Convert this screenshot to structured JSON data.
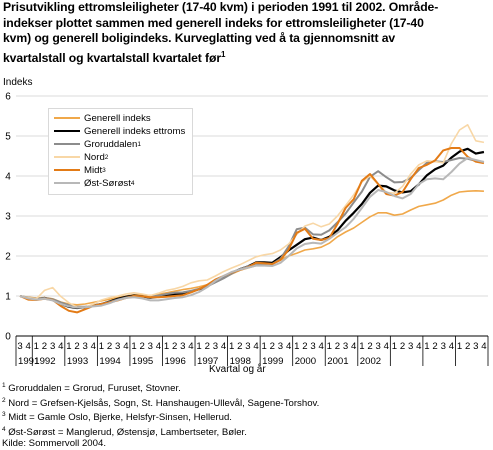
{
  "title_lines": [
    "Prisutvikling ettromsleiligheter (17-40 kvm) i perioden 1991 til 2002. Område-",
    "indekser plottet sammen med generell indeks for ettromsleiligheter (17-40",
    "kvm) og generell boligindeks. Kurveglatting ved å ta gjennomsnitt av",
    "kvartalstall og kvartalstall kvartalet før"
  ],
  "title_footnote_mark": "1",
  "ylabel": "Indeks",
  "xlabel": "Kvartal og år",
  "footnotes": [
    {
      "mark": "1",
      "text": "Groruddalen = Grorud, Furuset, Stovner."
    },
    {
      "mark": "2",
      "text": "Nord = Grefsen-Kjelsås, Sogn, St. Hanshaugen-Ullevål, Sagene-Torshov."
    },
    {
      "mark": "3",
      "text": "Midt = Gamle Oslo, Bjerke, Helsfyr-Sinsen, Hellerud."
    },
    {
      "mark": "4",
      "text": "Øst-Sørøst = Manglerud, Østensjø, Lambertseter, Bøler."
    },
    {
      "mark": "",
      "text": "Kilde: Sommervoll 2004."
    }
  ],
  "chart_data": {
    "type": "line",
    "ylim": [
      0,
      6
    ],
    "yticks": [
      0,
      1,
      2,
      3,
      4,
      5,
      6
    ],
    "grid": "horizontal",
    "legend_position": "top-left",
    "x_tick_labels": [
      "3",
      "4",
      "1",
      "2",
      "3",
      "4",
      "1",
      "2",
      "3",
      "4",
      "1",
      "2",
      "3",
      "4",
      "1",
      "2",
      "3",
      "4",
      "1",
      "2",
      "3",
      "4",
      "1",
      "2",
      "3",
      "4",
      "1",
      "2",
      "3",
      "4",
      "1",
      "2",
      "3",
      "4",
      "1",
      "2",
      "3",
      "4",
      "1",
      "2",
      "3",
      "4",
      "1",
      "2",
      "3",
      "4",
      "1",
      "2",
      "3",
      "4",
      "1",
      "2",
      "3",
      "4",
      "1",
      "2",
      "3",
      "4"
    ],
    "x_year_labels": [
      "1991",
      "1992",
      "1993",
      "1994",
      "1995",
      "1996",
      "1997",
      "1998",
      "1999",
      "2000",
      "2001",
      "2002"
    ],
    "series": [
      {
        "name": "Generell indeks",
        "mark": "",
        "color": "#f0a84a",
        "width": 1.6,
        "values": [
          1.0,
          0.97,
          0.95,
          0.96,
          0.93,
          0.85,
          0.8,
          0.78,
          0.8,
          0.84,
          0.88,
          0.92,
          0.96,
          1.0,
          1.03,
          1.02,
          1.01,
          1.04,
          1.08,
          1.12,
          1.16,
          1.19,
          1.23,
          1.28,
          1.36,
          1.45,
          1.55,
          1.64,
          1.7,
          1.76,
          1.79,
          1.82,
          1.9,
          2.0,
          2.07,
          2.15,
          2.18,
          2.22,
          2.32,
          2.48,
          2.6,
          2.7,
          2.84,
          2.98,
          3.08,
          3.08,
          3.02,
          3.05,
          3.15,
          3.24,
          3.28,
          3.32,
          3.4,
          3.52,
          3.6,
          3.62,
          3.63,
          3.62
        ]
      },
      {
        "name": "Generell indeks ettroms",
        "mark": "",
        "color": "#000000",
        "width": 2.2,
        "values": [
          1.0,
          0.94,
          0.92,
          0.95,
          0.9,
          0.8,
          0.73,
          0.7,
          0.72,
          0.76,
          0.8,
          0.86,
          0.93,
          0.98,
          1.01,
          0.99,
          0.96,
          0.98,
          1.02,
          1.04,
          1.06,
          1.11,
          1.17,
          1.24,
          1.36,
          1.47,
          1.58,
          1.67,
          1.74,
          1.84,
          1.84,
          1.83,
          1.97,
          2.14,
          2.28,
          2.42,
          2.46,
          2.4,
          2.48,
          2.64,
          2.88,
          3.08,
          3.3,
          3.58,
          3.76,
          3.74,
          3.64,
          3.59,
          3.62,
          3.79,
          4.02,
          4.17,
          4.26,
          4.46,
          4.61,
          4.68,
          4.56,
          4.6
        ]
      },
      {
        "name": "Groruddalen",
        "mark": "1",
        "color": "#8c8c8c",
        "width": 2.0,
        "values": [
          1.0,
          0.96,
          0.93,
          0.95,
          0.92,
          0.84,
          0.77,
          0.73,
          0.73,
          0.76,
          0.8,
          0.85,
          0.91,
          0.96,
          1.0,
          0.99,
          0.98,
          1.01,
          1.05,
          1.08,
          1.09,
          1.13,
          1.18,
          1.24,
          1.34,
          1.44,
          1.56,
          1.67,
          1.74,
          1.81,
          1.81,
          1.8,
          1.93,
          2.24,
          2.67,
          2.71,
          2.54,
          2.53,
          2.64,
          2.84,
          3.06,
          3.34,
          3.61,
          3.98,
          4.12,
          3.97,
          3.84,
          3.85,
          3.95,
          4.15,
          4.33,
          4.37,
          4.35,
          4.4,
          4.45,
          4.43,
          4.38,
          4.35
        ]
      },
      {
        "name": "Nord",
        "mark": "2",
        "color": "#f8d7a6",
        "width": 1.6,
        "values": [
          1.0,
          0.96,
          0.93,
          1.14,
          1.21,
          0.99,
          0.83,
          0.72,
          0.72,
          0.8,
          0.9,
          0.96,
          1.0,
          1.05,
          1.08,
          1.05,
          1.01,
          1.07,
          1.14,
          1.18,
          1.24,
          1.33,
          1.38,
          1.4,
          1.5,
          1.61,
          1.7,
          1.78,
          1.88,
          1.98,
          2.03,
          2.06,
          2.15,
          2.3,
          2.54,
          2.75,
          2.82,
          2.73,
          2.8,
          3.0,
          3.26,
          3.53,
          3.85,
          4.0,
          3.8,
          3.59,
          3.57,
          3.74,
          4.05,
          4.28,
          4.38,
          4.36,
          4.33,
          4.81,
          5.15,
          5.28,
          4.88,
          4.84
        ]
      },
      {
        "name": "Midt",
        "mark": "3",
        "color": "#e37b16",
        "width": 2.0,
        "values": [
          1.0,
          0.91,
          0.9,
          0.93,
          0.9,
          0.75,
          0.63,
          0.59,
          0.67,
          0.75,
          0.8,
          0.84,
          0.89,
          0.95,
          1.0,
          0.99,
          0.97,
          0.97,
          0.98,
          1.0,
          1.02,
          1.09,
          1.17,
          1.28,
          1.41,
          1.5,
          1.59,
          1.65,
          1.72,
          1.83,
          1.82,
          1.8,
          1.9,
          2.16,
          2.58,
          2.68,
          2.43,
          2.4,
          2.45,
          2.8,
          3.2,
          3.42,
          3.88,
          4.05,
          3.8,
          3.55,
          3.51,
          3.6,
          3.92,
          4.2,
          4.28,
          4.39,
          4.64,
          4.7,
          4.7,
          4.48,
          4.36,
          4.32
        ]
      },
      {
        "name": "Øst-Sørøst",
        "mark": "4",
        "color": "#b8b8b8",
        "width": 2.0,
        "values": [
          1.0,
          0.94,
          0.91,
          0.93,
          0.89,
          0.8,
          0.74,
          0.71,
          0.72,
          0.74,
          0.76,
          0.82,
          0.9,
          0.95,
          0.97,
          0.94,
          0.89,
          0.89,
          0.92,
          0.95,
          0.97,
          1.02,
          1.1,
          1.22,
          1.38,
          1.5,
          1.6,
          1.66,
          1.71,
          1.76,
          1.76,
          1.75,
          1.83,
          2.0,
          2.19,
          2.3,
          2.33,
          2.31,
          2.43,
          2.58,
          2.72,
          2.93,
          3.2,
          3.48,
          3.65,
          3.6,
          3.5,
          3.44,
          3.55,
          3.8,
          3.92,
          3.94,
          3.92,
          4.1,
          4.31,
          4.45,
          4.4,
          4.35
        ]
      }
    ]
  }
}
